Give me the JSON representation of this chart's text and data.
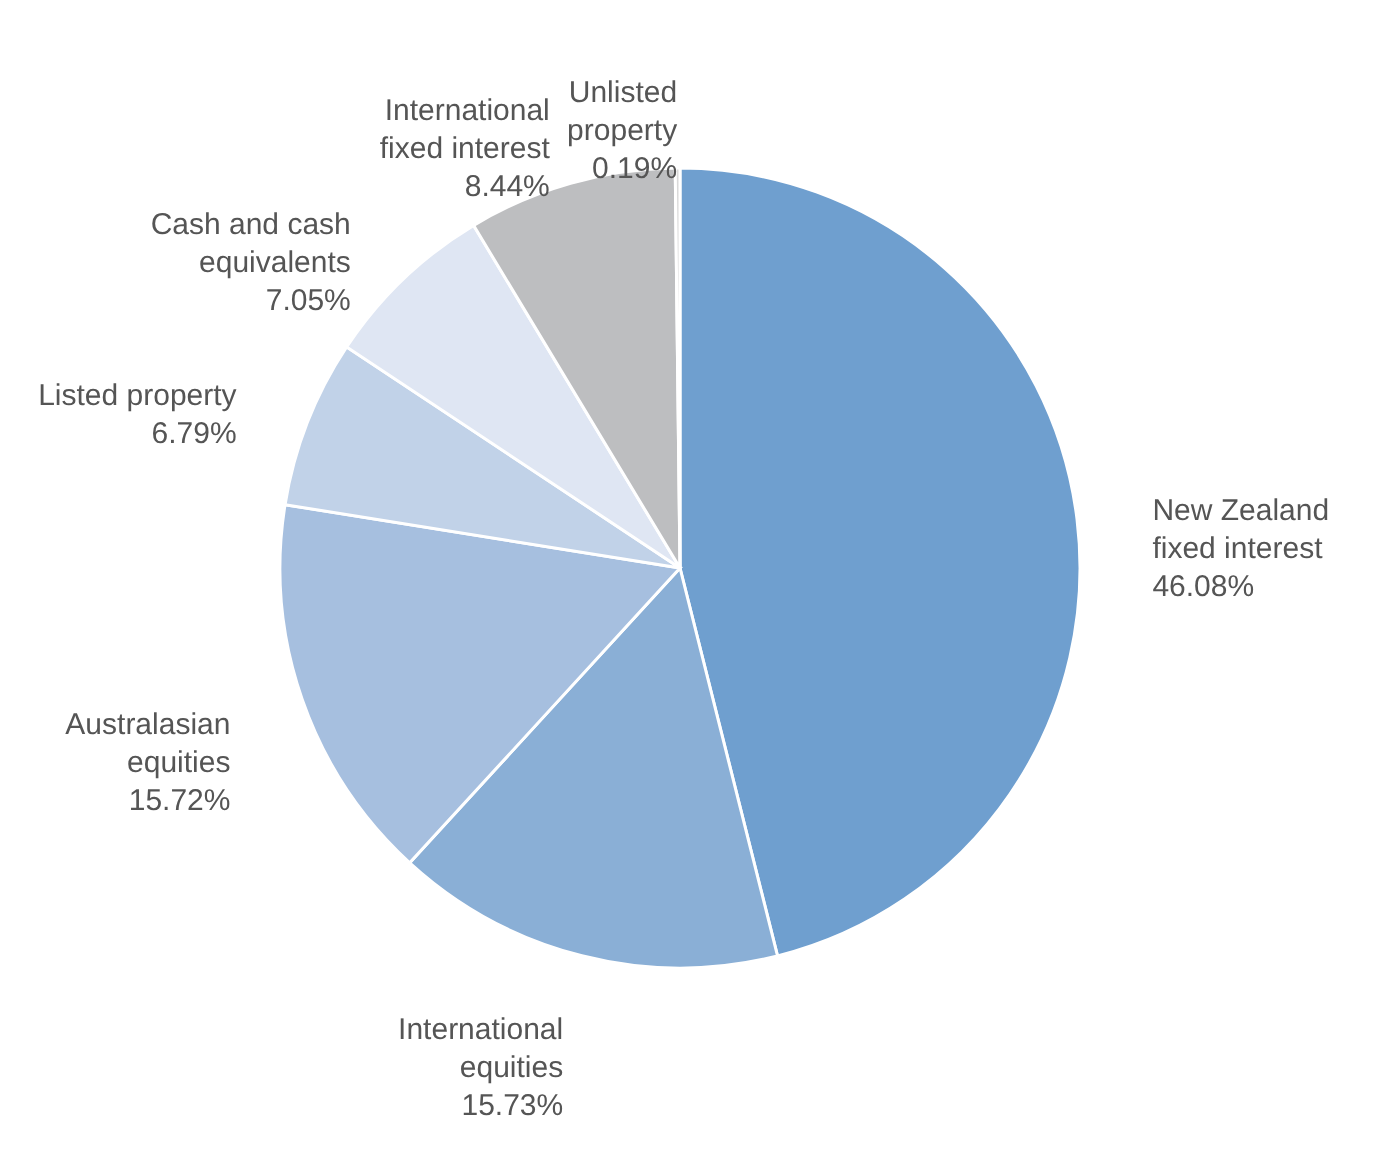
{
  "chart_data": {
    "type": "pie",
    "categories": [
      "New Zealand fixed interest",
      "International equities",
      "Australasian equities",
      "Listed property",
      "Cash and cash equivalents",
      "International fixed interest",
      "Unlisted property"
    ],
    "values": [
      46.08,
      15.73,
      15.72,
      6.79,
      7.05,
      8.44,
      0.19
    ],
    "value_labels": [
      "46.08%",
      "15.73%",
      "15.72%",
      "6.79%",
      "7.05%",
      "8.44%",
      "0.19%"
    ],
    "colors": [
      "#6f9fcf",
      "#8aafd6",
      "#a6bfdf",
      "#c1d2e8",
      "#dfe6f3",
      "#bdbec0",
      "#d9d9d9"
    ]
  }
}
